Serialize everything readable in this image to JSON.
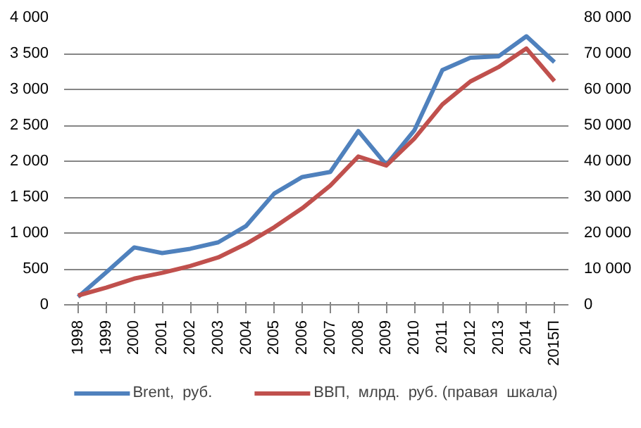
{
  "chart_data": {
    "type": "line",
    "categories": [
      "1998",
      "1999",
      "2000",
      "2001",
      "2002",
      "2003",
      "2004",
      "2005",
      "2006",
      "2007",
      "2008",
      "2009",
      "2010",
      "2011",
      "2012",
      "2013",
      "2014",
      "2015П"
    ],
    "series": [
      {
        "name": "Brent,  руб.",
        "color": "#4f81bd",
        "values": [
          110,
          450,
          800,
          720,
          780,
          870,
          1100,
          1550,
          1780,
          1850,
          2420,
          1950,
          2430,
          3270,
          3440,
          3460,
          3740,
          3380
        ]
      },
      {
        "name": "ВВП,  млрд.  руб. (правая  шкала)",
        "color": "#c0504d",
        "axis": "y2",
        "values": [
          2600,
          4800,
          7300,
          8900,
          10800,
          13200,
          17000,
          21600,
          26900,
          33200,
          41300,
          38800,
          46300,
          55800,
          62200,
          66200,
          71400,
          62300
        ]
      }
    ],
    "ylim": [
      0,
      4000
    ],
    "yticks": [
      0,
      500,
      {
        "value": 1000,
        "label": "1 000"
      },
      {
        "value": 1500,
        "label": "1 500"
      },
      {
        "value": 2000,
        "label": "2 000"
      },
      {
        "value": 2500,
        "label": "2 500"
      },
      {
        "value": 3000,
        "label": "3 000"
      },
      {
        "value": 3500,
        "label": "3 500"
      },
      {
        "value": 4000,
        "label": "4 000"
      }
    ],
    "y2lim": [
      0,
      80000
    ],
    "y2ticks": [
      0,
      {
        "value": 10000,
        "label": "10 000"
      },
      {
        "value": 20000,
        "label": "20 000"
      },
      {
        "value": 30000,
        "label": "30 000"
      },
      {
        "value": 40000,
        "label": "40 000"
      },
      {
        "value": 50000,
        "label": "50 000"
      },
      {
        "value": 60000,
        "label": "60 000"
      },
      {
        "value": 70000,
        "label": "70 000"
      },
      {
        "value": 80000,
        "label": "80 000"
      }
    ],
    "grid": "y",
    "legend": "bottom",
    "marker": "none",
    "line_style": "solid"
  }
}
